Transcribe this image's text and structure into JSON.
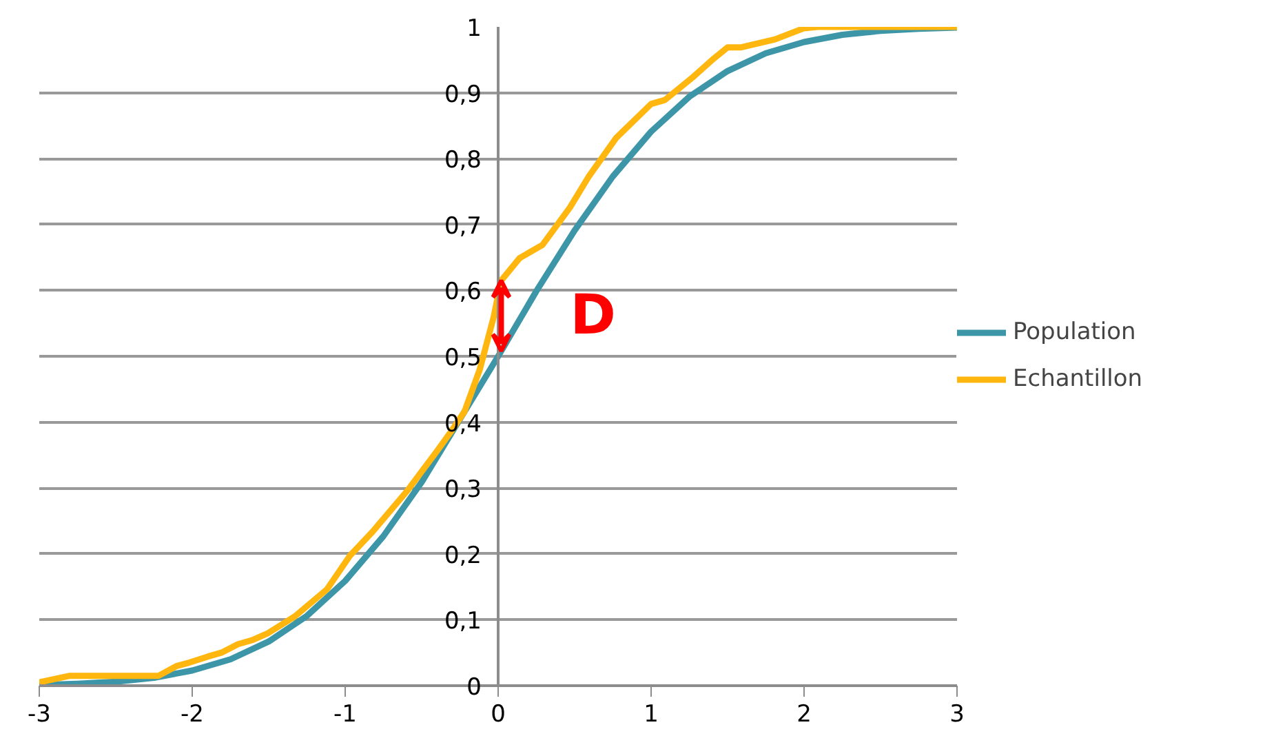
{
  "chart_data": {
    "type": "line",
    "xlim": [
      -3,
      3
    ],
    "xticks": [
      -3,
      -2,
      -1,
      0,
      1,
      2,
      3
    ],
    "ylim": [
      0,
      1
    ],
    "yticks": [
      0,
      {
        "value": 0.1,
        "label": "0,1"
      },
      {
        "value": 0.2,
        "label": "0,2"
      },
      {
        "value": 0.3,
        "label": "0,3"
      },
      {
        "value": 0.4,
        "label": "0,4"
      },
      {
        "value": 0.5,
        "label": "0,5"
      },
      {
        "value": 0.6,
        "label": "0,6"
      },
      {
        "value": 0.7,
        "label": "0,7"
      },
      {
        "value": 0.8,
        "label": "0,8"
      },
      {
        "value": 0.9,
        "label": "0,9"
      },
      1
    ],
    "grid": "y",
    "legend": "right",
    "marker": "none",
    "line_style": "solid",
    "series": [
      {
        "name": "Population",
        "color": "#3d96a8",
        "x": [
          -3,
          -2.75,
          -2.5,
          -2.25,
          -2,
          -1.75,
          -1.5,
          -1.25,
          -1,
          -0.75,
          -0.5,
          0,
          0.25,
          0.5,
          0.75,
          1,
          1.25,
          1.5,
          1.75,
          2,
          2.25,
          2.5,
          2.75,
          3
        ],
        "values": [
          0.001,
          0.003,
          0.006,
          0.012,
          0.023,
          0.04,
          0.067,
          0.106,
          0.159,
          0.227,
          0.309,
          0.5,
          0.599,
          0.691,
          0.773,
          0.841,
          0.894,
          0.933,
          0.96,
          0.977,
          0.988,
          0.994,
          0.997,
          0.999
        ]
      },
      {
        "name": "Echantillon",
        "color": "#ffb70f",
        "x": [
          -3,
          -2.8,
          -2.22,
          -2.1,
          -2.02,
          -1.9,
          -1.81,
          -1.7,
          -1.61,
          -1.51,
          -1.33,
          -1.12,
          -0.97,
          -0.82,
          -0.59,
          -0.4,
          -0.31,
          -0.22,
          -0.12,
          -0.03,
          0.02,
          0.14,
          0.29,
          0.47,
          0.59,
          0.77,
          1.0,
          1.09,
          1.28,
          1.41,
          1.5,
          1.59,
          1.81,
          2.0,
          2.09,
          3
        ],
        "values": [
          0.005,
          0.015,
          0.015,
          0.03,
          0.035,
          0.044,
          0.05,
          0.063,
          0.069,
          0.079,
          0.105,
          0.146,
          0.197,
          0.234,
          0.297,
          0.356,
          0.385,
          0.416,
          0.48,
          0.559,
          0.615,
          0.649,
          0.669,
          0.726,
          0.772,
          0.831,
          0.883,
          0.889,
          0.925,
          0.952,
          0.969,
          0.969,
          0.981,
          0.998,
          1,
          1
        ]
      }
    ],
    "annotations": [
      "D"
    ]
  }
}
